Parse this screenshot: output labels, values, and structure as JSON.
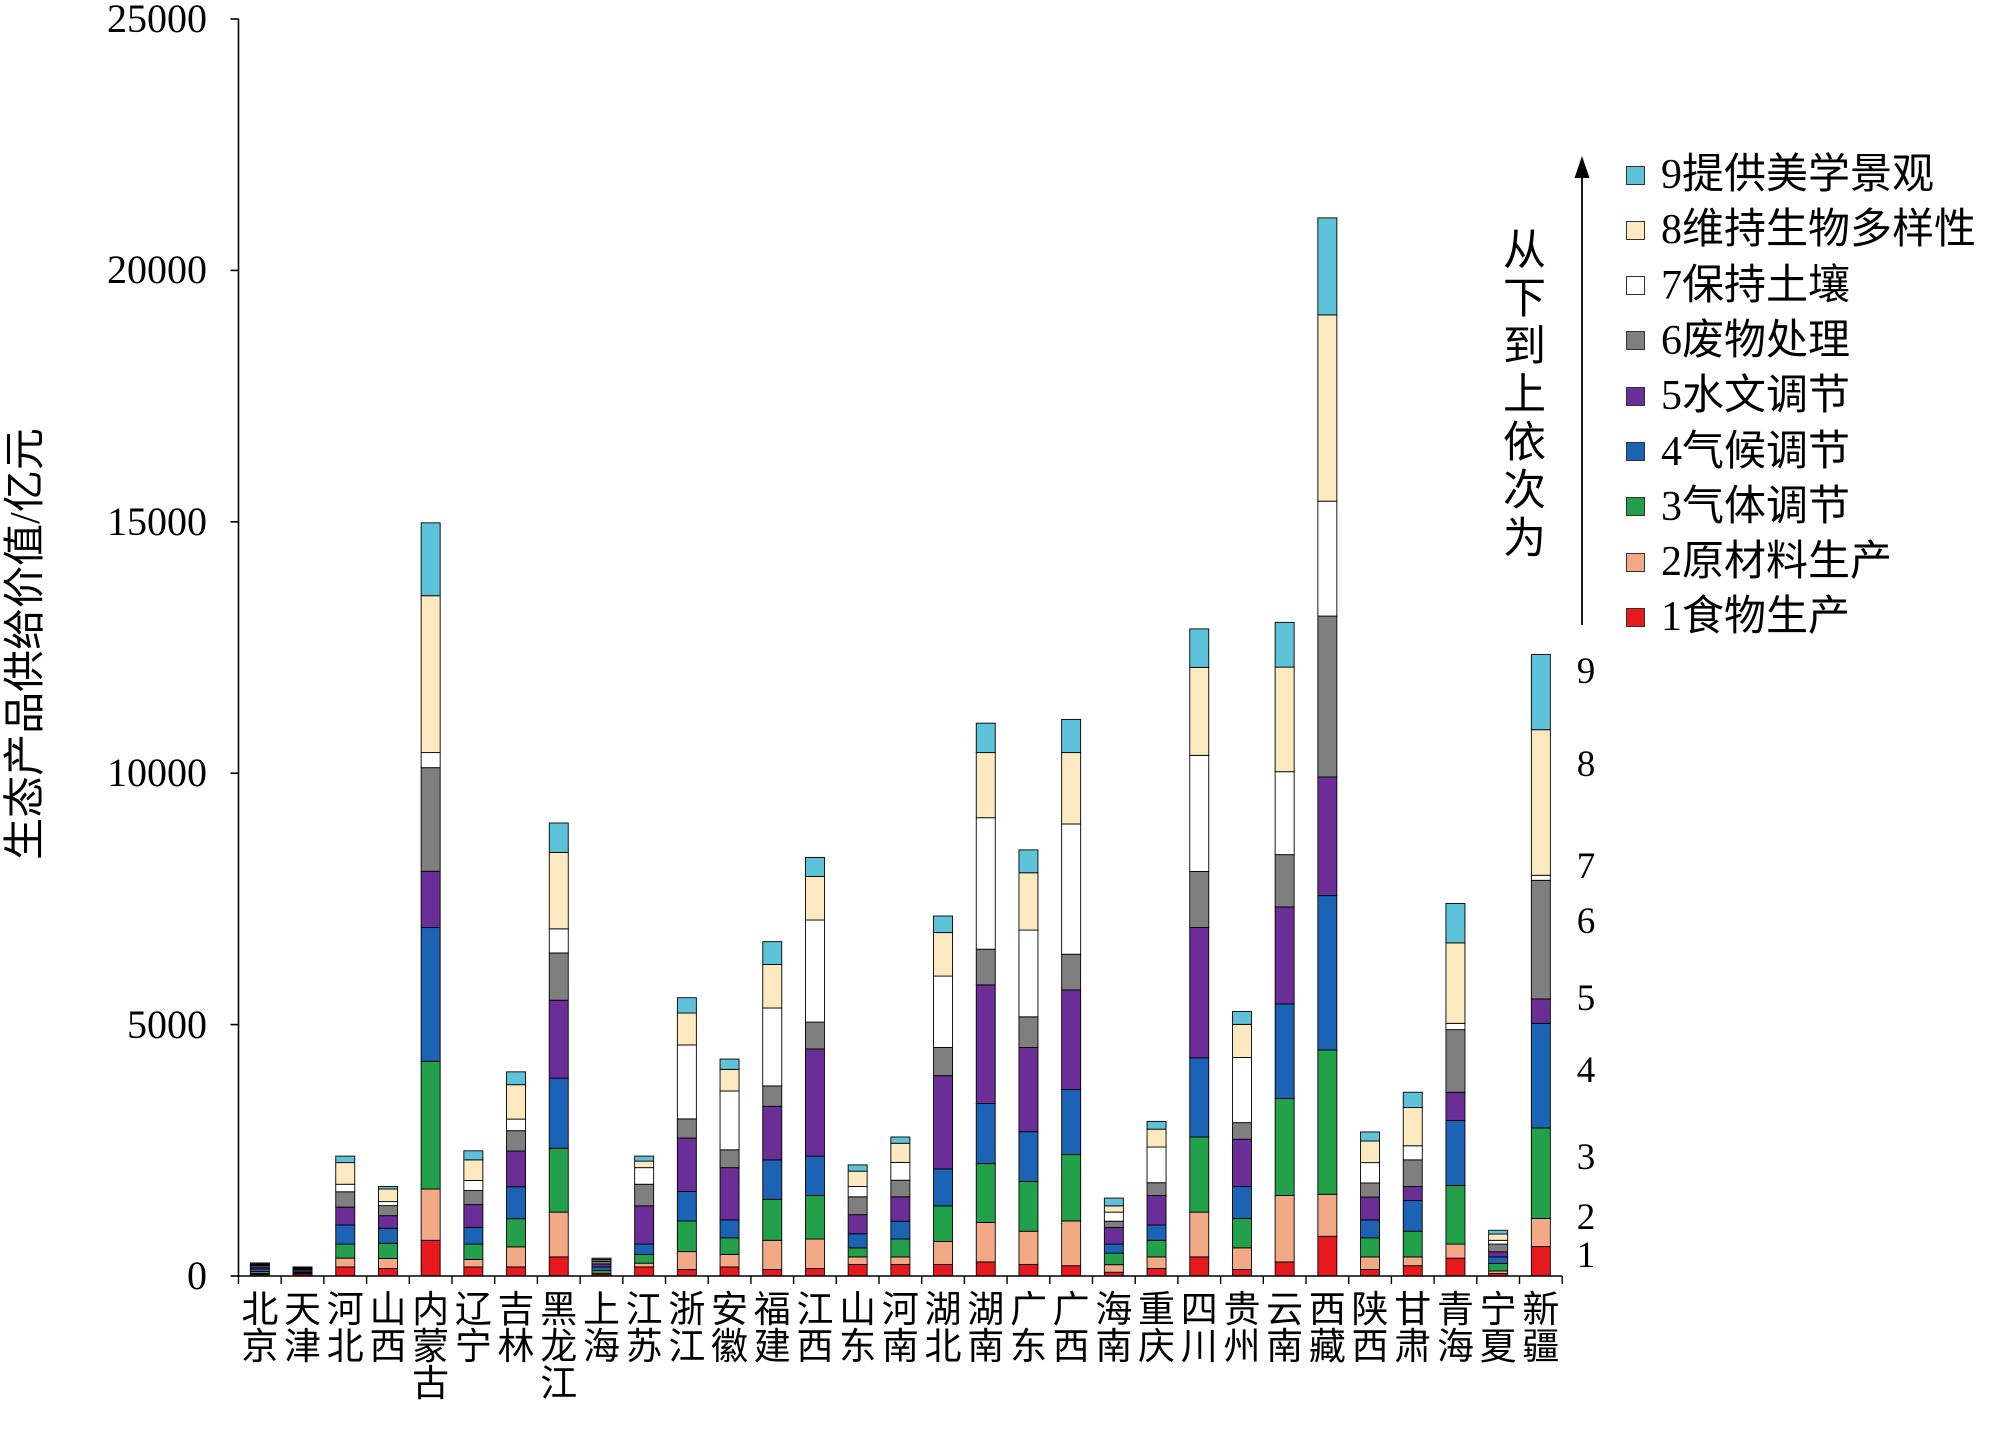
{
  "chart_data": {
    "type": "bar",
    "stacked": true,
    "title": "",
    "xlabel": "",
    "ylabel": "生态产品供给价值/亿元",
    "ylim": [
      0,
      25000
    ],
    "yticks": [
      0,
      5000,
      10000,
      15000,
      20000,
      25000
    ],
    "grid": false,
    "legend": {
      "position": "right",
      "note": "从下到上依次为"
    },
    "stack_labels": [
      "1",
      "2",
      "3",
      "4",
      "5",
      "6",
      "7",
      "8",
      "9"
    ],
    "categories": [
      "北京",
      "天津",
      "河北",
      "山西",
      "内蒙古",
      "辽宁",
      "吉林",
      "黑龙江",
      "上海",
      "江苏",
      "浙江",
      "安徽",
      "福建",
      "江西",
      "山东",
      "河南",
      "湖北",
      "湖南",
      "广东",
      "广西",
      "海南",
      "重庆",
      "四川",
      "贵州",
      "云南",
      "西藏",
      "陕西",
      "甘肃",
      "青海",
      "宁夏",
      "新疆"
    ],
    "series": [
      {
        "name": "1食物生产",
        "color": "#e8191c",
        "values": [
          30,
          40,
          180,
          150,
          710,
          180,
          180,
          380,
          40,
          180,
          130,
          180,
          130,
          150,
          230,
          230,
          230,
          280,
          230,
          205,
          75,
          150,
          380,
          130,
          280,
          790,
          130,
          205,
          355,
          50,
          585
        ]
      },
      {
        "name": "2原材料生产",
        "color": "#f2aa86",
        "values": [
          20,
          10,
          175,
          200,
          1020,
          150,
          400,
          890,
          10,
          75,
          355,
          250,
          580,
          585,
          150,
          150,
          455,
          785,
          660,
          890,
          150,
          230,
          890,
          430,
          1320,
          835,
          250,
          175,
          280,
          50,
          560
        ]
      },
      {
        "name": "3气体调节",
        "color": "#23a04a",
        "values": [
          40,
          20,
          280,
          300,
          2540,
          305,
          560,
          1270,
          60,
          175,
          610,
          330,
          815,
          865,
          180,
          355,
          710,
          1170,
          990,
          1320,
          230,
          330,
          1495,
          585,
          1930,
          2870,
          380,
          510,
          1165,
          150,
          1800
        ]
      },
      {
        "name": "4气候调节",
        "color": "#1c62b5",
        "values": [
          50,
          30,
          380,
          300,
          2660,
          330,
          635,
          1395,
          70,
          205,
          585,
          355,
          785,
          785,
          280,
          355,
          735,
          1195,
          990,
          1295,
          180,
          305,
          1575,
          635,
          1880,
          3070,
          355,
          610,
          1295,
          130,
          2080
        ]
      },
      {
        "name": "5水文调节",
        "color": "#6a2e96",
        "values": [
          40,
          30,
          355,
          250,
          1120,
          455,
          710,
          1550,
          60,
          760,
          1065,
          1040,
          1065,
          2130,
          380,
          485,
          1855,
          2360,
          1675,
          1980,
          330,
          585,
          2590,
          940,
          1930,
          2360,
          455,
          280,
          560,
          100,
          485
        ]
      },
      {
        "name": "6废物处理",
        "color": "#7f7f7f",
        "values": [
          30,
          20,
          305,
          200,
          2060,
          280,
          405,
          940,
          50,
          430,
          380,
          355,
          405,
          535,
          355,
          330,
          560,
          710,
          610,
          710,
          125,
          255,
          1115,
          330,
          1040,
          3200,
          280,
          530,
          1245,
          155,
          2360
        ]
      },
      {
        "name": "7保持土壤",
        "color": "#ffffff",
        "values": [
          10,
          5,
          150,
          80,
          300,
          200,
          230,
          480,
          10,
          330,
          1470,
          1170,
          1550,
          2030,
          205,
          355,
          1420,
          2615,
          1725,
          2590,
          180,
          710,
          2310,
          1295,
          1650,
          2285,
          405,
          280,
          125,
          75,
          100
        ]
      },
      {
        "name": "8维持生物多样性",
        "color": "#fde9c0",
        "values": [
          20,
          15,
          430,
          250,
          3120,
          410,
          685,
          1520,
          30,
          130,
          635,
          430,
          865,
          865,
          305,
          380,
          865,
          1295,
          1140,
          1420,
          125,
          355,
          1750,
          660,
          2080,
          3705,
          430,
          760,
          1600,
          125,
          2895
        ]
      },
      {
        "name": "9提供美学景观",
        "color": "#5ec3da",
        "values": [
          20,
          10,
          130,
          50,
          1450,
          180,
          255,
          585,
          25,
          100,
          305,
          205,
          455,
          380,
          125,
          125,
          330,
          585,
          455,
          660,
          155,
          155,
          765,
          255,
          890,
          1930,
          180,
          305,
          785,
          75,
          1495
        ]
      }
    ]
  }
}
